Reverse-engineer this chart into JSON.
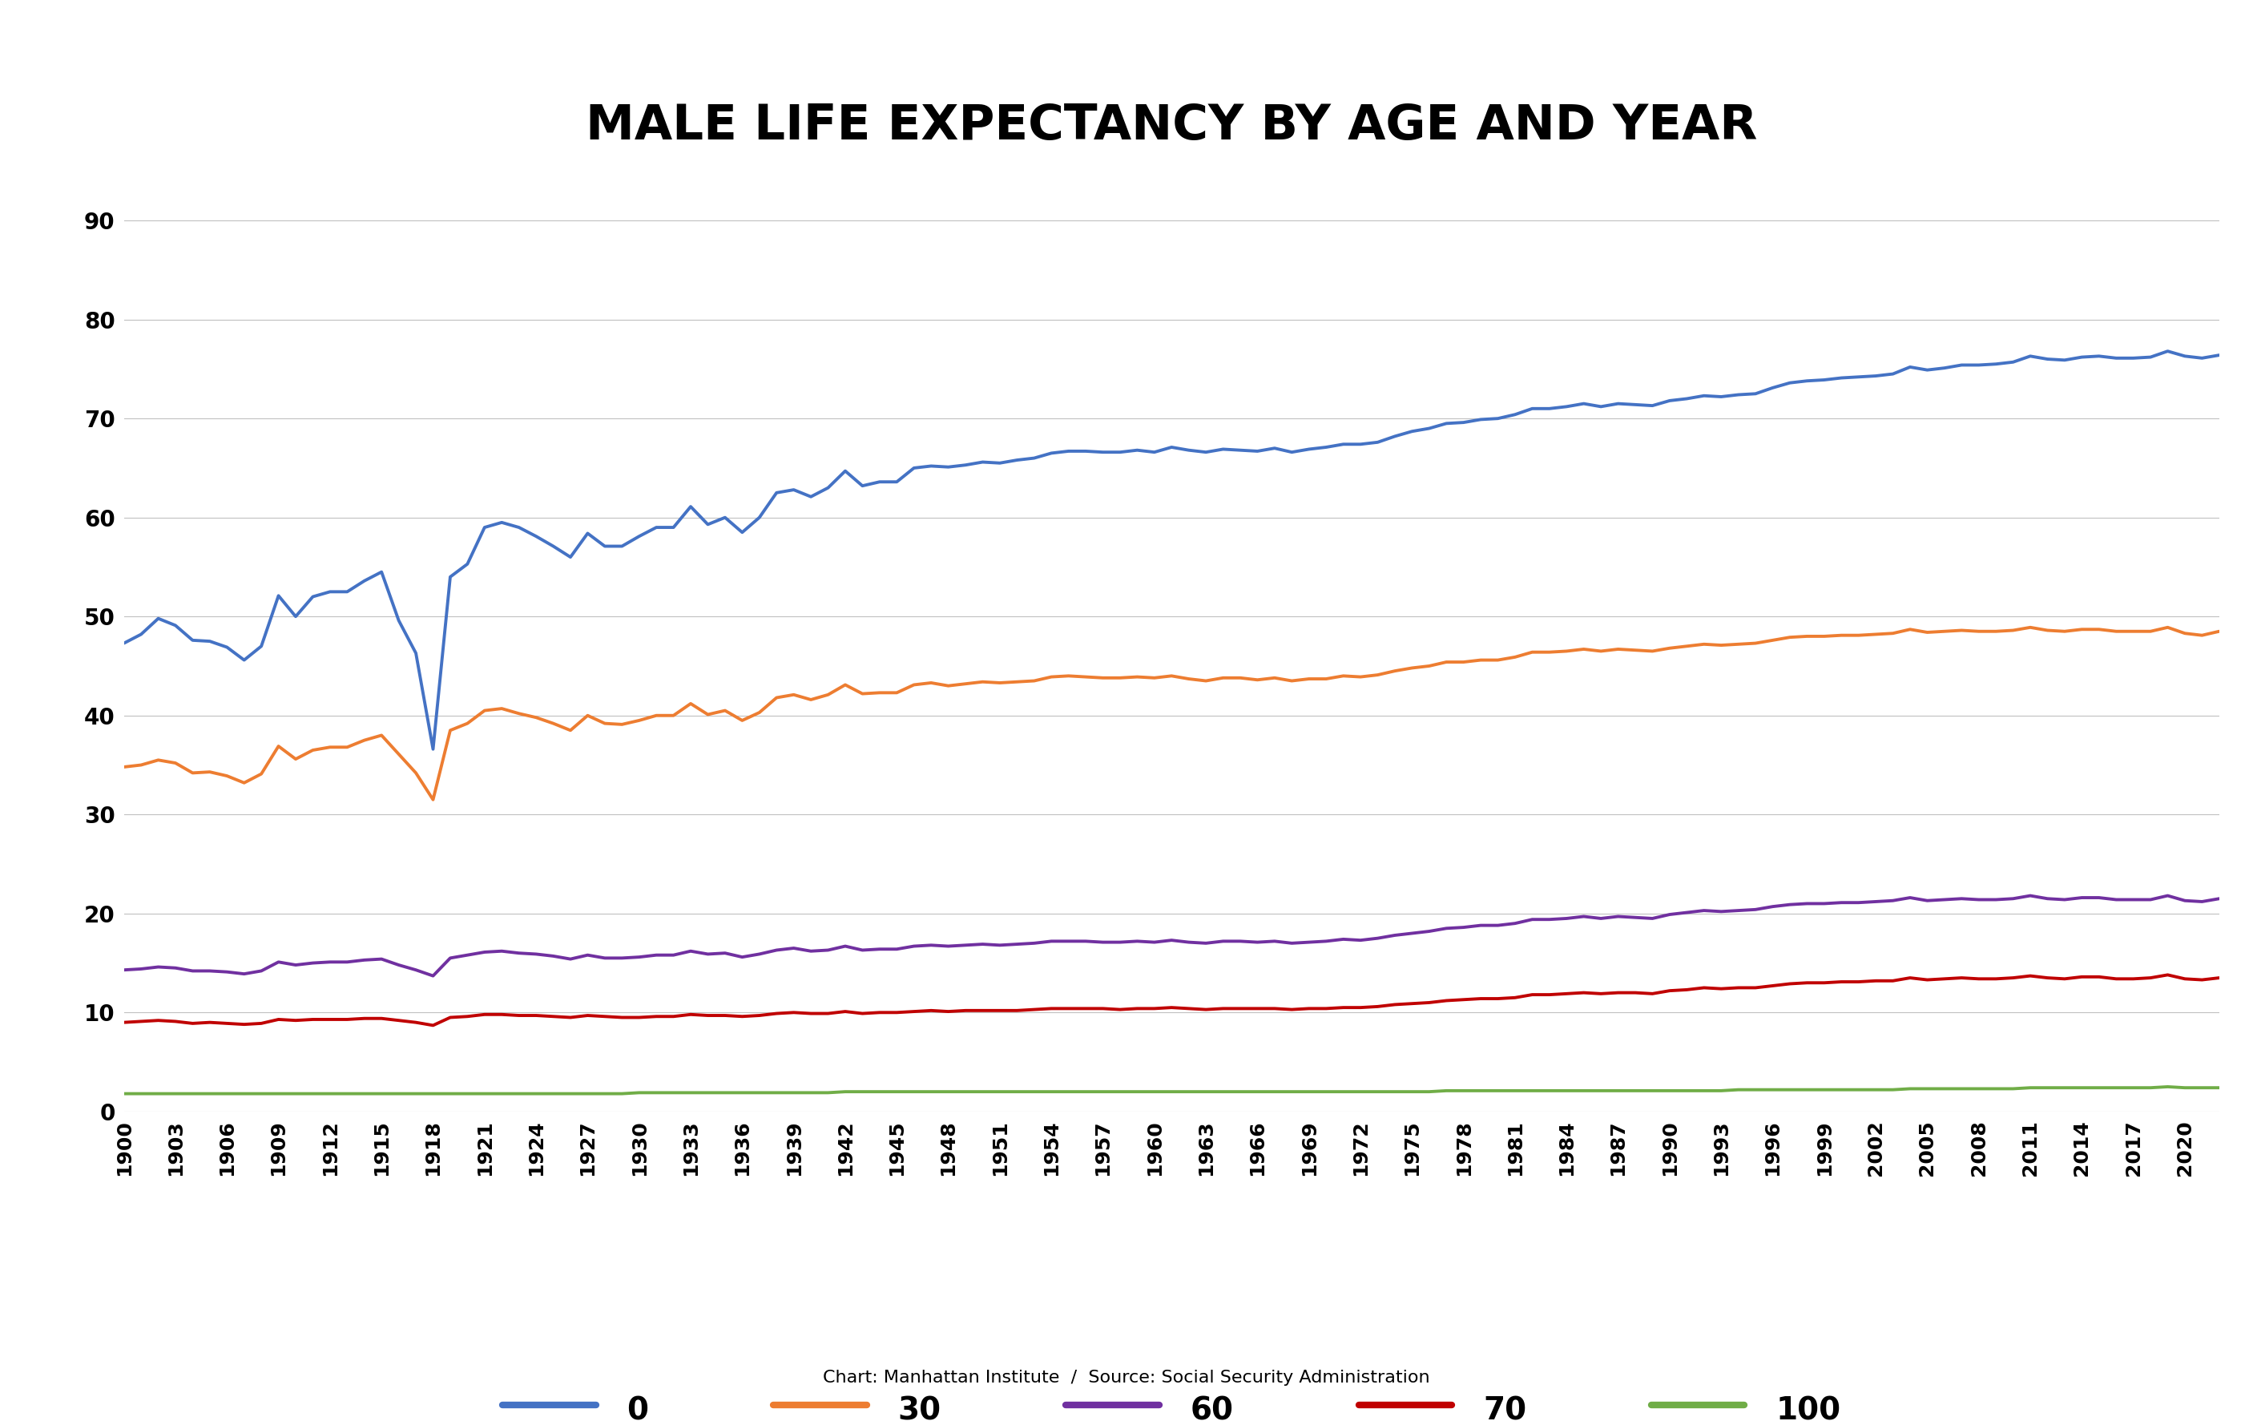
{
  "title": "MALE LIFE EXPECTANCY BY AGE AND YEAR",
  "subtitle": "Chart: Manhattan Institute  /  Source: Social Security Administration",
  "background_color": "#ffffff",
  "legend_labels": [
    "0",
    "30",
    "60",
    "70",
    "100"
  ],
  "line_colors": [
    "#4472C4",
    "#ED7D31",
    "#7030A0",
    "#C00000",
    "#70AD47"
  ],
  "years": [
    1900,
    1901,
    1902,
    1903,
    1904,
    1905,
    1906,
    1907,
    1908,
    1909,
    1910,
    1911,
    1912,
    1913,
    1914,
    1915,
    1916,
    1917,
    1918,
    1919,
    1920,
    1921,
    1922,
    1923,
    1924,
    1925,
    1926,
    1927,
    1928,
    1929,
    1930,
    1931,
    1932,
    1933,
    1934,
    1935,
    1936,
    1937,
    1938,
    1939,
    1940,
    1941,
    1942,
    1943,
    1944,
    1945,
    1946,
    1947,
    1948,
    1949,
    1950,
    1951,
    1952,
    1953,
    1954,
    1955,
    1956,
    1957,
    1958,
    1959,
    1960,
    1961,
    1962,
    1963,
    1964,
    1965,
    1966,
    1967,
    1968,
    1969,
    1970,
    1971,
    1972,
    1973,
    1974,
    1975,
    1976,
    1977,
    1978,
    1979,
    1980,
    1981,
    1982,
    1983,
    1984,
    1985,
    1986,
    1987,
    1988,
    1989,
    1990,
    1991,
    1992,
    1993,
    1994,
    1995,
    1996,
    1997,
    1998,
    1999,
    2000,
    2001,
    2002,
    2003,
    2004,
    2005,
    2006,
    2007,
    2008,
    2009,
    2010,
    2011,
    2012,
    2013,
    2014,
    2015,
    2016,
    2017,
    2018,
    2019,
    2020,
    2021,
    2022
  ],
  "age0": [
    47.3,
    48.2,
    49.8,
    49.1,
    47.6,
    47.5,
    46.9,
    45.6,
    47.0,
    52.1,
    50.0,
    52.0,
    52.5,
    52.5,
    53.6,
    54.5,
    49.6,
    46.3,
    36.6,
    54.0,
    55.3,
    59.0,
    59.5,
    59.0,
    58.1,
    57.1,
    56.0,
    58.4,
    57.1,
    57.1,
    58.1,
    59.0,
    59.0,
    61.1,
    59.3,
    60.0,
    58.5,
    60.0,
    62.5,
    62.8,
    62.1,
    63.0,
    64.7,
    63.2,
    63.6,
    63.6,
    65.0,
    65.2,
    65.1,
    65.3,
    65.6,
    65.5,
    65.8,
    66.0,
    66.5,
    66.7,
    66.7,
    66.6,
    66.6,
    66.8,
    66.6,
    67.1,
    66.8,
    66.6,
    66.9,
    66.8,
    66.7,
    67.0,
    66.6,
    66.9,
    67.1,
    67.4,
    67.4,
    67.6,
    68.2,
    68.7,
    69.0,
    69.5,
    69.6,
    69.9,
    70.0,
    70.4,
    71.0,
    71.0,
    71.2,
    71.5,
    71.2,
    71.5,
    71.4,
    71.3,
    71.8,
    72.0,
    72.3,
    72.2,
    72.4,
    72.5,
    73.1,
    73.6,
    73.8,
    73.9,
    74.1,
    74.2,
    74.3,
    74.5,
    75.2,
    74.9,
    75.1,
    75.4,
    75.4,
    75.5,
    75.7,
    76.3,
    76.0,
    75.9,
    76.2,
    76.3,
    76.1,
    76.1,
    76.2,
    76.8,
    76.3,
    76.1,
    76.4
  ],
  "age30": [
    34.8,
    35.0,
    35.5,
    35.2,
    34.2,
    34.3,
    33.9,
    33.2,
    34.1,
    36.9,
    35.6,
    36.5,
    36.8,
    36.8,
    37.5,
    38.0,
    36.1,
    34.2,
    31.5,
    38.5,
    39.2,
    40.5,
    40.7,
    40.2,
    39.8,
    39.2,
    38.5,
    40.0,
    39.2,
    39.1,
    39.5,
    40.0,
    40.0,
    41.2,
    40.1,
    40.5,
    39.5,
    40.3,
    41.8,
    42.1,
    41.6,
    42.1,
    43.1,
    42.2,
    42.3,
    42.3,
    43.1,
    43.3,
    43.0,
    43.2,
    43.4,
    43.3,
    43.4,
    43.5,
    43.9,
    44.0,
    43.9,
    43.8,
    43.8,
    43.9,
    43.8,
    44.0,
    43.7,
    43.5,
    43.8,
    43.8,
    43.6,
    43.8,
    43.5,
    43.7,
    43.7,
    44.0,
    43.9,
    44.1,
    44.5,
    44.8,
    45.0,
    45.4,
    45.4,
    45.6,
    45.6,
    45.9,
    46.4,
    46.4,
    46.5,
    46.7,
    46.5,
    46.7,
    46.6,
    46.5,
    46.8,
    47.0,
    47.2,
    47.1,
    47.2,
    47.3,
    47.6,
    47.9,
    48.0,
    48.0,
    48.1,
    48.1,
    48.2,
    48.3,
    48.7,
    48.4,
    48.5,
    48.6,
    48.5,
    48.5,
    48.6,
    48.9,
    48.6,
    48.5,
    48.7,
    48.7,
    48.5,
    48.5,
    48.5,
    48.9,
    48.3,
    48.1,
    48.5
  ],
  "age60": [
    14.3,
    14.4,
    14.6,
    14.5,
    14.2,
    14.2,
    14.1,
    13.9,
    14.2,
    15.1,
    14.8,
    15.0,
    15.1,
    15.1,
    15.3,
    15.4,
    14.8,
    14.3,
    13.7,
    15.5,
    15.8,
    16.1,
    16.2,
    16.0,
    15.9,
    15.7,
    15.4,
    15.8,
    15.5,
    15.5,
    15.6,
    15.8,
    15.8,
    16.2,
    15.9,
    16.0,
    15.6,
    15.9,
    16.3,
    16.5,
    16.2,
    16.3,
    16.7,
    16.3,
    16.4,
    16.4,
    16.7,
    16.8,
    16.7,
    16.8,
    16.9,
    16.8,
    16.9,
    17.0,
    17.2,
    17.2,
    17.2,
    17.1,
    17.1,
    17.2,
    17.1,
    17.3,
    17.1,
    17.0,
    17.2,
    17.2,
    17.1,
    17.2,
    17.0,
    17.1,
    17.2,
    17.4,
    17.3,
    17.5,
    17.8,
    18.0,
    18.2,
    18.5,
    18.6,
    18.8,
    18.8,
    19.0,
    19.4,
    19.4,
    19.5,
    19.7,
    19.5,
    19.7,
    19.6,
    19.5,
    19.9,
    20.1,
    20.3,
    20.2,
    20.3,
    20.4,
    20.7,
    20.9,
    21.0,
    21.0,
    21.1,
    21.1,
    21.2,
    21.3,
    21.6,
    21.3,
    21.4,
    21.5,
    21.4,
    21.4,
    21.5,
    21.8,
    21.5,
    21.4,
    21.6,
    21.6,
    21.4,
    21.4,
    21.4,
    21.8,
    21.3,
    21.2,
    21.5
  ],
  "age70": [
    9.0,
    9.1,
    9.2,
    9.1,
    8.9,
    9.0,
    8.9,
    8.8,
    8.9,
    9.3,
    9.2,
    9.3,
    9.3,
    9.3,
    9.4,
    9.4,
    9.2,
    9.0,
    8.7,
    9.5,
    9.6,
    9.8,
    9.8,
    9.7,
    9.7,
    9.6,
    9.5,
    9.7,
    9.6,
    9.5,
    9.5,
    9.6,
    9.6,
    9.8,
    9.7,
    9.7,
    9.6,
    9.7,
    9.9,
    10.0,
    9.9,
    9.9,
    10.1,
    9.9,
    10.0,
    10.0,
    10.1,
    10.2,
    10.1,
    10.2,
    10.2,
    10.2,
    10.2,
    10.3,
    10.4,
    10.4,
    10.4,
    10.4,
    10.3,
    10.4,
    10.4,
    10.5,
    10.4,
    10.3,
    10.4,
    10.4,
    10.4,
    10.4,
    10.3,
    10.4,
    10.4,
    10.5,
    10.5,
    10.6,
    10.8,
    10.9,
    11.0,
    11.2,
    11.3,
    11.4,
    11.4,
    11.5,
    11.8,
    11.8,
    11.9,
    12.0,
    11.9,
    12.0,
    12.0,
    11.9,
    12.2,
    12.3,
    12.5,
    12.4,
    12.5,
    12.5,
    12.7,
    12.9,
    13.0,
    13.0,
    13.1,
    13.1,
    13.2,
    13.2,
    13.5,
    13.3,
    13.4,
    13.5,
    13.4,
    13.4,
    13.5,
    13.7,
    13.5,
    13.4,
    13.6,
    13.6,
    13.4,
    13.4,
    13.5,
    13.8,
    13.4,
    13.3,
    13.5
  ],
  "age100": [
    1.8,
    1.8,
    1.8,
    1.8,
    1.8,
    1.8,
    1.8,
    1.8,
    1.8,
    1.8,
    1.8,
    1.8,
    1.8,
    1.8,
    1.8,
    1.8,
    1.8,
    1.8,
    1.8,
    1.8,
    1.8,
    1.8,
    1.8,
    1.8,
    1.8,
    1.8,
    1.8,
    1.8,
    1.8,
    1.8,
    1.9,
    1.9,
    1.9,
    1.9,
    1.9,
    1.9,
    1.9,
    1.9,
    1.9,
    1.9,
    1.9,
    1.9,
    2.0,
    2.0,
    2.0,
    2.0,
    2.0,
    2.0,
    2.0,
    2.0,
    2.0,
    2.0,
    2.0,
    2.0,
    2.0,
    2.0,
    2.0,
    2.0,
    2.0,
    2.0,
    2.0,
    2.0,
    2.0,
    2.0,
    2.0,
    2.0,
    2.0,
    2.0,
    2.0,
    2.0,
    2.0,
    2.0,
    2.0,
    2.0,
    2.0,
    2.0,
    2.0,
    2.1,
    2.1,
    2.1,
    2.1,
    2.1,
    2.1,
    2.1,
    2.1,
    2.1,
    2.1,
    2.1,
    2.1,
    2.1,
    2.1,
    2.1,
    2.1,
    2.1,
    2.2,
    2.2,
    2.2,
    2.2,
    2.2,
    2.2,
    2.2,
    2.2,
    2.2,
    2.2,
    2.3,
    2.3,
    2.3,
    2.3,
    2.3,
    2.3,
    2.3,
    2.4,
    2.4,
    2.4,
    2.4,
    2.4,
    2.4,
    2.4,
    2.4,
    2.5,
    2.4,
    2.4,
    2.4
  ],
  "ylim": [
    0,
    95
  ],
  "yticks": [
    0,
    10,
    20,
    30,
    40,
    50,
    60,
    70,
    80,
    90
  ],
  "line_width": 2.8
}
